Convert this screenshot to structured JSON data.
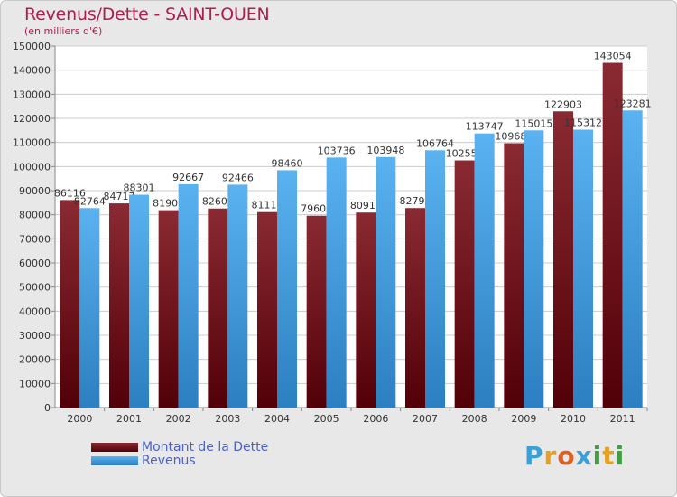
{
  "title": "Revenus/Dette - SAINT-OUEN",
  "subtitle": "(en milliers d'€)",
  "logo": {
    "text": "Proxiti",
    "letters": [
      {
        "ch": "P",
        "color": "#3aa0d8"
      },
      {
        "ch": "r",
        "color": "#e8a020"
      },
      {
        "ch": "o",
        "color": "#e06020"
      },
      {
        "ch": "x",
        "color": "#3aa0d8"
      },
      {
        "ch": "i",
        "color": "#40a040"
      },
      {
        "ch": "t",
        "color": "#e8a020"
      },
      {
        "ch": "i",
        "color": "#40a040"
      }
    ]
  },
  "colors": {
    "dette": "#7a1a22",
    "revenus": "#4aa2e4",
    "plot_bg": "#ffffff",
    "grid": "#cccccc",
    "axis_text": "#333333"
  },
  "chart_data": {
    "type": "bar",
    "title": "Revenus/Dette - SAINT-OUEN",
    "subtitle": "(en milliers d'€)",
    "categories": [
      "2000",
      "2001",
      "2002",
      "2003",
      "2004",
      "2005",
      "2006",
      "2007",
      "2008",
      "2009",
      "2010",
      "2011"
    ],
    "series": [
      {
        "name": "Montant de la Dette",
        "values": [
          86116,
          84717,
          81901,
          82601,
          81113,
          79601,
          80911,
          82791,
          102551,
          109681,
          122903,
          143054
        ]
      },
      {
        "name": "Revenus",
        "values": [
          82764,
          88301,
          92667,
          92466,
          98460,
          103736,
          103948,
          106764,
          113747,
          115015,
          115312,
          123281
        ]
      }
    ],
    "ylim": [
      0,
      150000
    ],
    "yticks": [
      0,
      10000,
      20000,
      30000,
      40000,
      50000,
      60000,
      70000,
      80000,
      90000,
      100000,
      110000,
      120000,
      130000,
      140000,
      150000
    ],
    "grid": true,
    "legend_position": "bottom-left"
  }
}
